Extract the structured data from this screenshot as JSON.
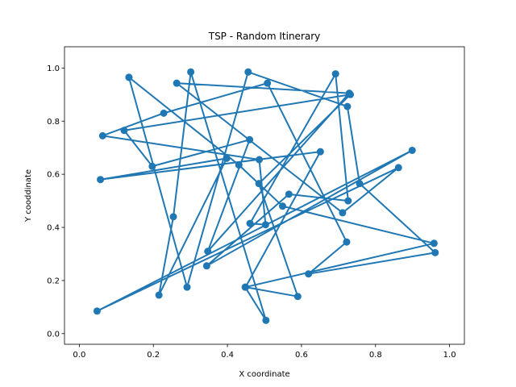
{
  "chart_data": {
    "type": "line",
    "title": "TSP - Random Itinerary",
    "xlabel": "X coordinate",
    "ylabel": "Y cooddinate",
    "xlim": [
      -0.04,
      1.04
    ],
    "ylim": [
      -0.04,
      1.08
    ],
    "xticks": [
      "0.0",
      "0.2",
      "0.4",
      "0.6",
      "0.8",
      "1.0"
    ],
    "yticks": [
      "0.0",
      "0.2",
      "0.4",
      "0.6",
      "0.8",
      "1.0"
    ],
    "grid": false,
    "series_color": "#1f77b4",
    "markers": true,
    "x": [
      0.134,
      0.291,
      0.456,
      0.724,
      0.757,
      0.961,
      0.619,
      0.722,
      0.508,
      0.228,
      0.063,
      0.486,
      0.503,
      0.461,
      0.692,
      0.726,
      0.566,
      0.344,
      0.899,
      0.048,
      0.862,
      0.711,
      0.263,
      0.729,
      0.347,
      0.46,
      0.197,
      0.121,
      0.732,
      0.485,
      0.59,
      0.449,
      0.651,
      0.057,
      0.398,
      0.215,
      0.254,
      0.301,
      0.504,
      0.448,
      0.958,
      0.549,
      0.431,
      0.134
    ],
    "y": [
      0.965,
      0.175,
      0.985,
      0.855,
      0.565,
      0.305,
      0.225,
      0.345,
      0.943,
      0.83,
      0.745,
      0.655,
      0.41,
      0.415,
      0.978,
      0.5,
      0.525,
      0.255,
      0.69,
      0.085,
      0.625,
      0.455,
      0.943,
      0.905,
      0.31,
      0.73,
      0.63,
      0.765,
      0.9,
      0.565,
      0.14,
      0.175,
      0.685,
      0.58,
      0.66,
      0.145,
      0.44,
      0.985,
      0.05,
      0.175,
      0.34,
      0.48,
      0.635,
      0.965
    ]
  }
}
